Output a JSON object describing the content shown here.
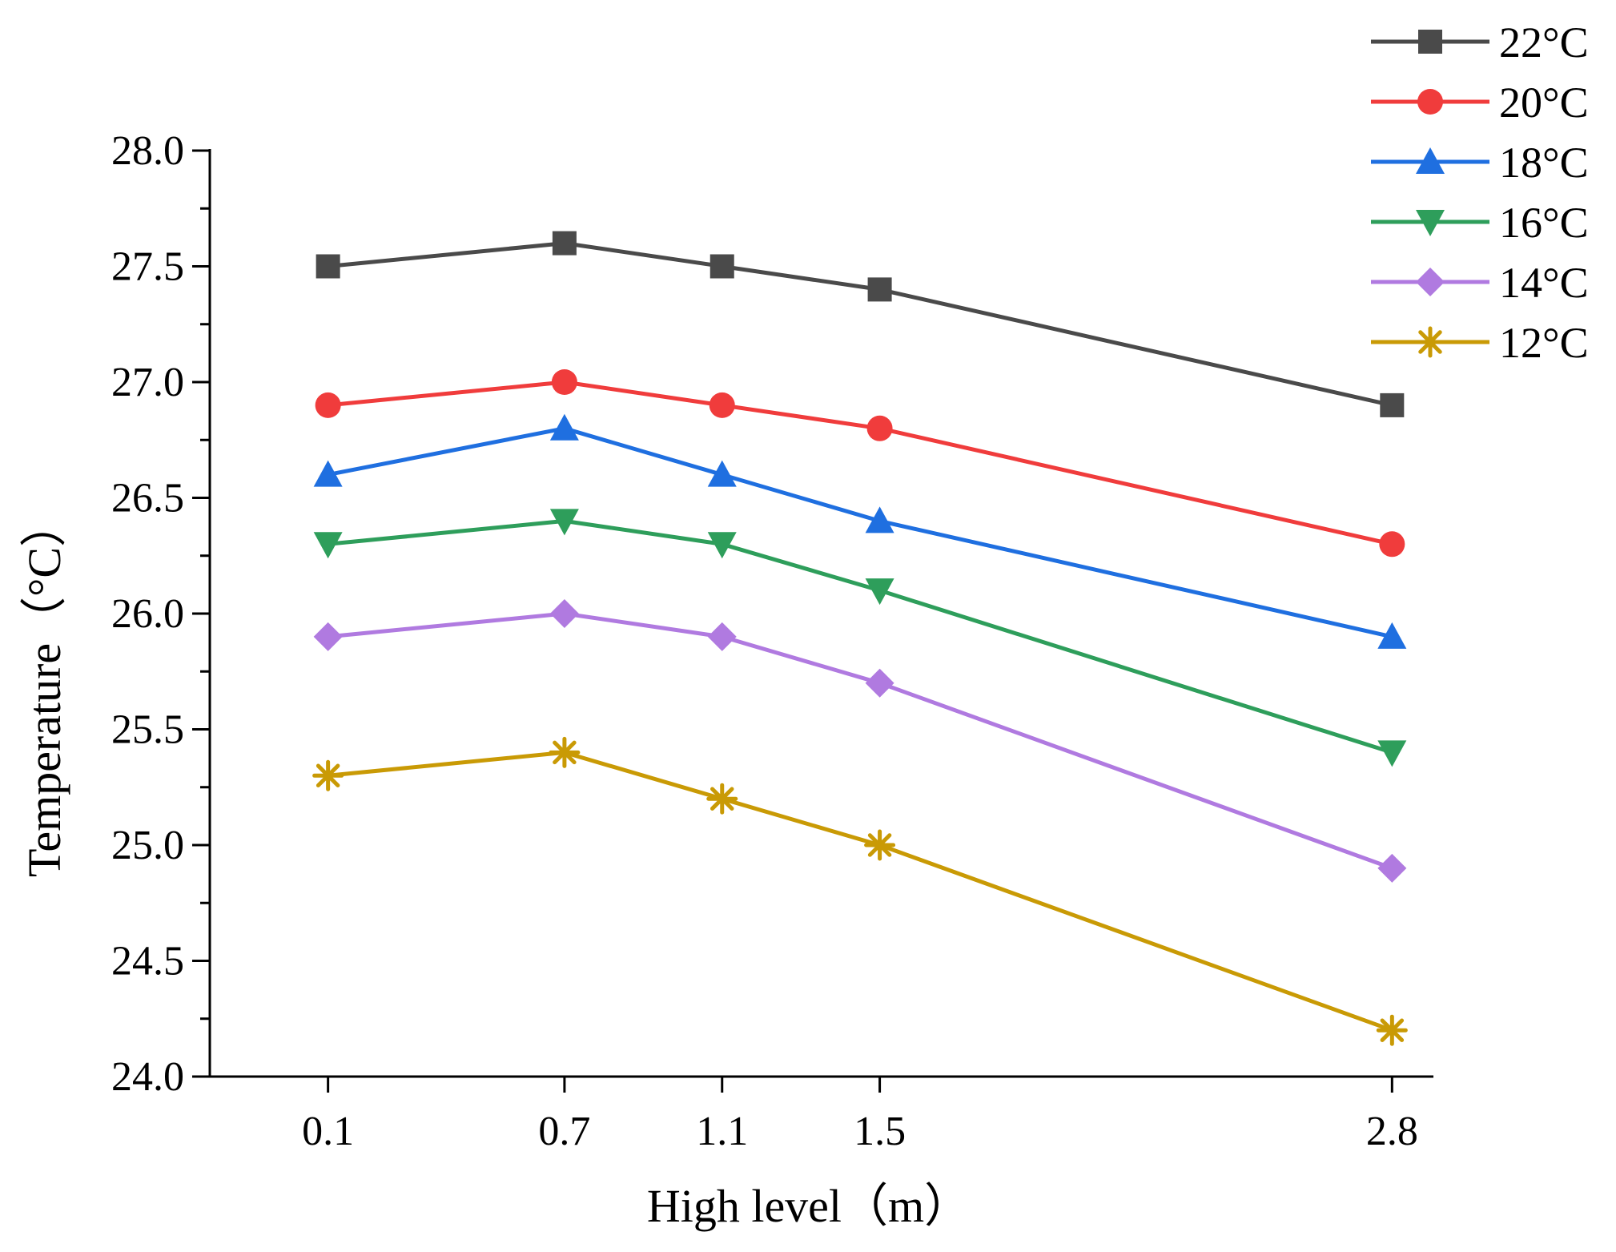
{
  "chart_data": {
    "type": "line",
    "title": "",
    "xlabel": "High level（m）",
    "ylabel": "Temperature（°C）",
    "x": [
      0.1,
      0.7,
      1.1,
      1.5,
      2.8
    ],
    "x_tick_labels": [
      "0.1",
      "0.7",
      "1.1",
      "1.5",
      "2.8"
    ],
    "xlim": [
      -0.2,
      2.905
    ],
    "ylim": [
      24.0,
      28.0
    ],
    "y_ticks": [
      24.0,
      24.5,
      25.0,
      25.5,
      26.0,
      26.5,
      27.0,
      27.5,
      28.0
    ],
    "y_tick_labels": [
      "24.0",
      "24.5",
      "25.0",
      "25.5",
      "26.0",
      "26.5",
      "27.0",
      "27.5",
      "28.0"
    ],
    "grid": false,
    "legend_position": "top-right",
    "series": [
      {
        "name": "22°C",
        "color": "#4a4a4a",
        "marker": "square",
        "values": [
          27.5,
          27.6,
          27.5,
          27.4,
          26.9
        ]
      },
      {
        "name": "20°C",
        "color": "#f03c3c",
        "marker": "circle",
        "values": [
          26.9,
          27.0,
          26.9,
          26.8,
          26.3
        ]
      },
      {
        "name": "18°C",
        "color": "#1f6fe0",
        "marker": "triangle-up",
        "values": [
          26.6,
          26.8,
          26.6,
          26.4,
          25.9
        ]
      },
      {
        "name": "16°C",
        "color": "#2e9e5b",
        "marker": "triangle-down",
        "values": [
          26.3,
          26.4,
          26.3,
          26.1,
          25.4
        ]
      },
      {
        "name": "14°C",
        "color": "#b07ae0",
        "marker": "diamond",
        "values": [
          25.9,
          26.0,
          25.9,
          25.7,
          24.9
        ]
      },
      {
        "name": "12°C",
        "color": "#c99a05",
        "marker": "asterisk",
        "values": [
          25.3,
          25.4,
          25.2,
          25.0,
          24.2
        ]
      }
    ]
  }
}
